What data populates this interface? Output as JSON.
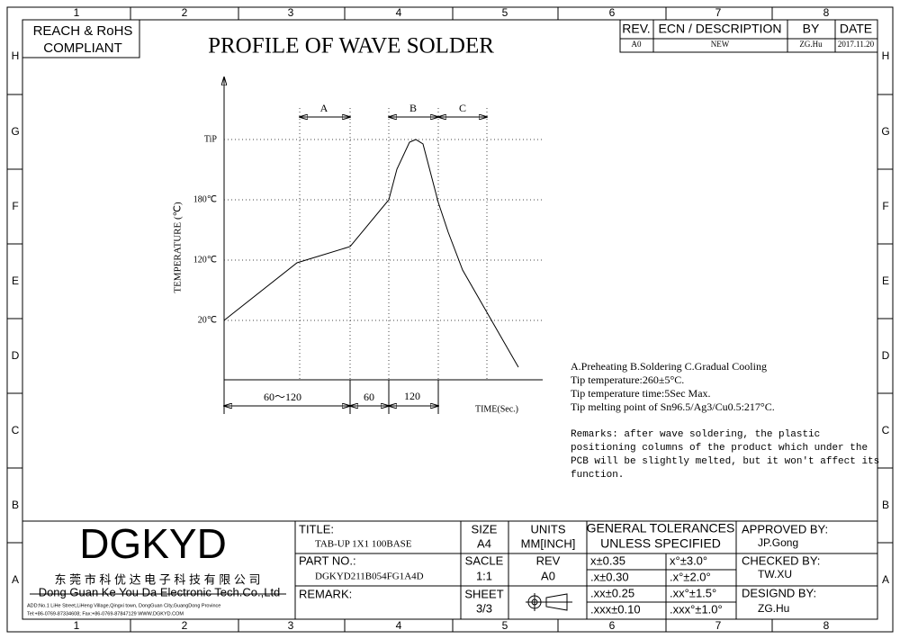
{
  "border": {
    "columns": [
      "1",
      "2",
      "3",
      "4",
      "5",
      "6",
      "7",
      "8"
    ],
    "rows": [
      "H",
      "G",
      "F",
      "E",
      "D",
      "C",
      "B",
      "A"
    ]
  },
  "compliance": [
    "REACH & RoHS",
    "COMPLIANT"
  ],
  "title": "PROFILE OF WAVE SOLDER",
  "revision": {
    "headers": [
      "REV.",
      "ECN / DESCRIPTION",
      "BY",
      "DATE"
    ],
    "row": [
      "A0",
      "NEW",
      "ZG.Hu",
      "2017.11.20"
    ]
  },
  "profile": {
    "phases": [
      "A",
      "B",
      "C"
    ],
    "temperature_labels": [
      "TiP",
      "180℃",
      "120℃",
      "20℃"
    ],
    "y_label": "TEMPERATURE (℃)",
    "durations": [
      "60～120",
      "60",
      "120"
    ],
    "x_label": "TIME(Sec.)"
  },
  "notes": [
    "A.Preheating  B.Soldering  C.Gradual Cooling",
    "Tip temperature:260±5°C.",
    "Tip temperature time:5Sec Max.",
    "Tip melting point of Sn96.5/Ag3/Cu0.5:217°C."
  ],
  "remarks": [
    "Remarks: after wave soldering, the plastic",
    "positioning columns of the product  which under the",
    "PCB will be slightly melted, but it won't affect its",
    "function."
  ],
  "title_block": {
    "company_logo": "DGKYD",
    "company_cn": "东 莞 市 科 优 达 电 子 科 技 有 限 公 司",
    "company_en": "Dong Guan Ke You Da Electronic Tech.Co.,Ltd",
    "address": "ADD:No.1 LiHe Street,LiHeng Village,Qingxi town, DongGuan City,GuangDong Province",
    "contact": "Tel:+86-0769-87334608; Fax:+86-0769-87847129  WWW.DGKYD.COM",
    "title_label": "TITLE:",
    "title": "TAB-UP 1X1 100BASE",
    "part_no_label": "PART NO.:",
    "part_no": "DGKYD211B054FG1A4D",
    "remark_label": "REMARK:",
    "size_label": "SIZE",
    "size": "A4",
    "units_label": "UNITS",
    "units": "MM[INCH]",
    "scale_label": "SACLE",
    "scale": "1:1",
    "rev_label": "REV",
    "rev": "A0",
    "sheet_label": "SHEET",
    "sheet": "3/3",
    "tolerances_title": [
      "GENERAL TOLERANCES",
      "UNLESS SPECIFIED"
    ],
    "tolerances": [
      [
        "x±0.35",
        "x°±3.0°"
      ],
      [
        ".x±0.30",
        ".x°±2.0°"
      ],
      [
        ".xx±0.25",
        ".xx°±1.5°"
      ],
      [
        ".xxx±0.10",
        ".xxx°±1.0°"
      ]
    ],
    "approved_label": "APPROVED BY:",
    "approved": "JP.Gong",
    "checked_label": "CHECKED BY:",
    "checked": "TW.XU",
    "designed_label": "DESIGND BY:",
    "designed": "ZG.Hu"
  }
}
